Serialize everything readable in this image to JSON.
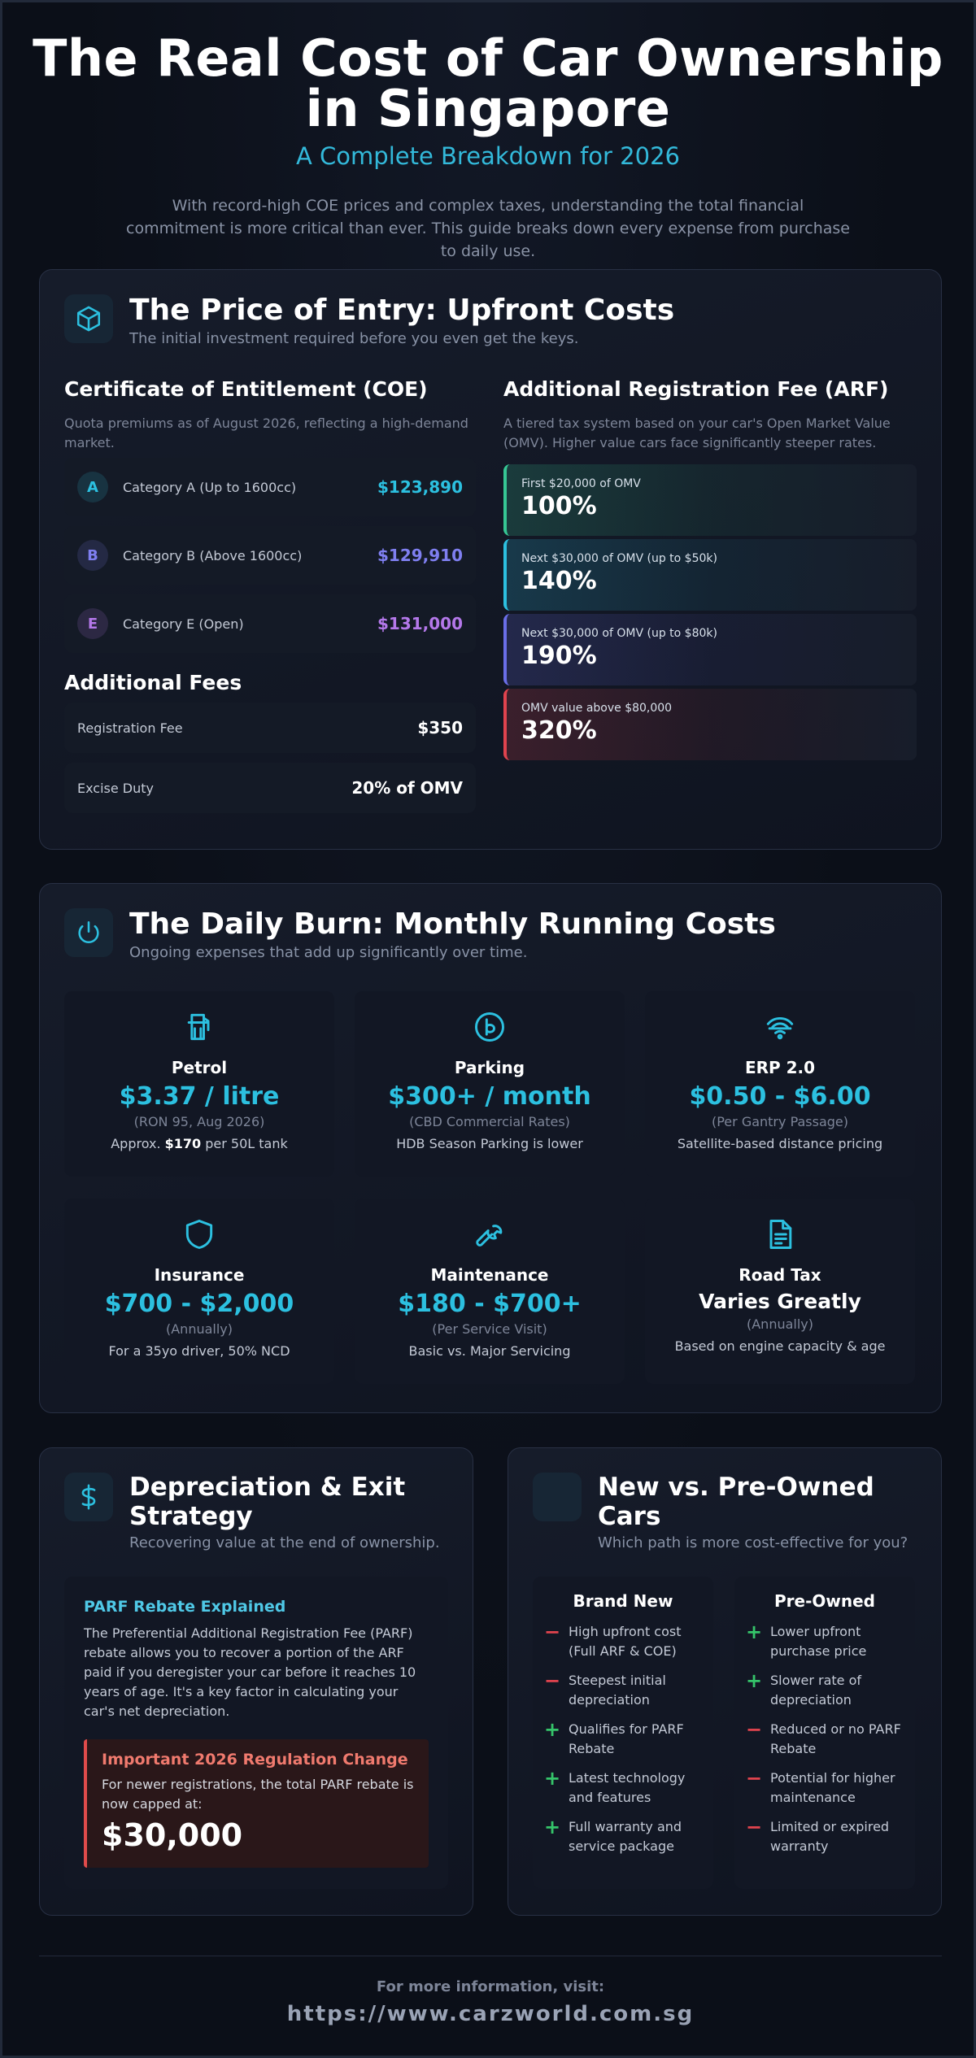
{
  "header": {
    "title": "The Real Cost of Car Ownership in Singapore",
    "subtitle": "A Complete Breakdown for 2026",
    "intro": "With record-high COE prices and complex taxes, understanding the total financial commitment is more critical than ever. This guide breaks down every expense from purchase to daily use."
  },
  "upfront": {
    "icon": "cube-icon",
    "title": "The Price of Entry: Upfront Costs",
    "subtitle": "The initial investment required before you even get the keys.",
    "coe": {
      "title": "Certificate of Entitlement (COE)",
      "desc": "Quota premiums as of August 2026, reflecting a high-demand market.",
      "rows": [
        {
          "badge": "A",
          "label": "Category A (Up to 1600cc)",
          "price": "$123,890",
          "color": "#2cc0e0"
        },
        {
          "badge": "B",
          "label": "Category B (Above 1600cc)",
          "price": "$129,910",
          "color": "#7f7ff0"
        },
        {
          "badge": "E",
          "label": "Category E (Open)",
          "price": "$131,000",
          "color": "#b478ea"
        }
      ]
    },
    "fees": {
      "title": "Additional Fees",
      "rows": [
        {
          "label": "Registration Fee",
          "value": "$350"
        },
        {
          "label": "Excise Duty",
          "value": "20% of OMV"
        }
      ]
    },
    "arf": {
      "title": "Additional Registration Fee (ARF)",
      "desc": "A tiered tax system based on your car's Open Market Value (OMV). Higher value cars face significantly steeper rates.",
      "tiers": [
        {
          "label": "First $20,000 of OMV",
          "value": "100%",
          "color": "#36c794"
        },
        {
          "label": "Next $30,000 of OMV (up to $50k)",
          "value": "140%",
          "color": "#2cc0e0"
        },
        {
          "label": "Next $30,000 of OMV (up to $80k)",
          "value": "190%",
          "color": "#6a6ee8"
        },
        {
          "label": "OMV value above $80,000",
          "value": "320%",
          "color": "#e0434e"
        }
      ]
    }
  },
  "running": {
    "icon": "power-icon",
    "title": "The Daily Burn: Monthly Running Costs",
    "subtitle": "Ongoing expenses that add up significantly over time.",
    "tiles": [
      {
        "icon": "fuel-pump-icon",
        "name": "Petrol",
        "value": "$3.37 / litre",
        "note": "(RON 95, Aug 2026)",
        "desc_pre": "Approx. ",
        "desc_bold": "$170",
        "desc_post": " per 50L tank"
      },
      {
        "icon": "parking-icon",
        "name": "Parking",
        "value": "$300+ / month",
        "note": "(CBD Commercial Rates)",
        "desc": "HDB Season Parking is lower"
      },
      {
        "icon": "gantry-signal-icon",
        "name": "ERP 2.0",
        "value": "$0.50 - $6.00",
        "note": "(Per Gantry Passage)",
        "desc": "Satellite-based distance pricing"
      },
      {
        "icon": "shield-icon",
        "name": "Insurance",
        "value": "$700 - $2,000",
        "note": "(Annually)",
        "desc": "For a 35yo driver, 50% NCD"
      },
      {
        "icon": "wrench-icon",
        "name": "Maintenance",
        "value": "$180 - $700+",
        "note": "(Per Service Visit)",
        "desc": "Basic vs. Major Servicing"
      },
      {
        "icon": "document-icon",
        "name": "Road Tax",
        "value": "Varies Greatly",
        "note": "(Annually)",
        "desc": "Based on engine capacity & age"
      }
    ]
  },
  "depreciation": {
    "icon": "dollar-icon",
    "title": "Depreciation & Exit Strategy",
    "subtitle": "Recovering value at the end of ownership.",
    "parf_title": "PARF Rebate Explained",
    "parf_text": "The Preferential Additional Registration Fee (PARF) rebate allows you to recover a portion of the ARF paid if you deregister your car before it reaches 10 years of age. It's a key factor in calculating your car's net depreciation.",
    "alert_title": "Important 2026 Regulation Change",
    "alert_text": "For newer registrations, the total PARF rebate is now capped at:",
    "alert_value": "$30,000"
  },
  "comparison": {
    "icon": "blank-icon",
    "title": "New vs. Pre-Owned Cars",
    "subtitle": "Which path is more cost-effective for you?",
    "new": {
      "heading": "Brand New",
      "items": [
        {
          "sign": "−",
          "type": "minus",
          "text": "High upfront cost (Full ARF & COE)"
        },
        {
          "sign": "−",
          "type": "minus",
          "text": "Steepest initial depreciation"
        },
        {
          "sign": "+",
          "type": "plus",
          "text": "Qualifies for PARF Rebate"
        },
        {
          "sign": "+",
          "type": "plus",
          "text": "Latest technology and features"
        },
        {
          "sign": "+",
          "type": "plus",
          "text": "Full warranty and service package"
        }
      ]
    },
    "used": {
      "heading": "Pre-Owned",
      "items": [
        {
          "sign": "+",
          "type": "plus",
          "text": "Lower upfront purchase price"
        },
        {
          "sign": "+",
          "type": "plus",
          "text": "Slower rate of depreciation"
        },
        {
          "sign": "−",
          "type": "minus",
          "text": "Reduced or no PARF Rebate"
        },
        {
          "sign": "−",
          "type": "minus",
          "text": "Potential for higher maintenance"
        },
        {
          "sign": "−",
          "type": "minus",
          "text": "Limited or expired warranty"
        }
      ]
    }
  },
  "footer": {
    "label": "For more information, visit:",
    "url": "https://www.carzworld.com.sg"
  }
}
